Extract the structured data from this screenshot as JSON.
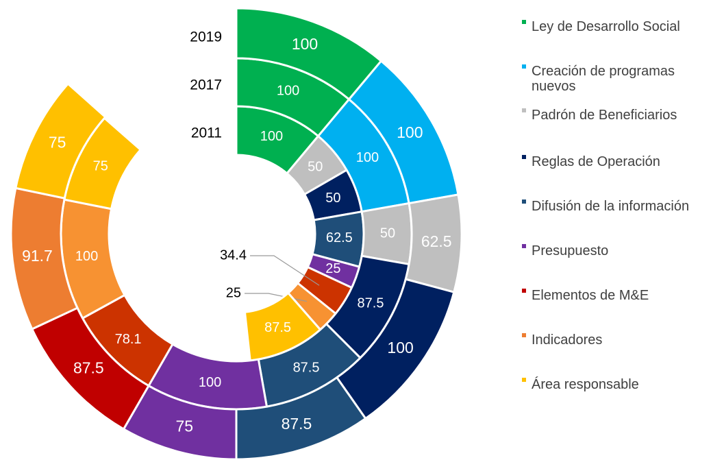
{
  "chart_data": {
    "type": "multi-ring-radial",
    "categories": [
      "Ley de Desarrollo Social",
      "Creación de programas nuevos",
      "Padrón de Beneficiarios",
      "Reglas de Operación",
      "Difusión de la información",
      "Presupuesto",
      "Elementos de M&E",
      "Indicadores",
      "Área responsable"
    ],
    "colors": [
      "#00b050",
      "#00b0f0",
      "#bfbfbf",
      "#002060",
      "#1f4e79",
      "#7030a0",
      "#c00000",
      "#ed7d31",
      "#ffc000"
    ],
    "series": [
      {
        "name": "2011",
        "values": [
          100,
          null,
          50,
          50,
          62.5,
          25,
          34.4,
          25,
          87.5
        ],
        "colors": [
          "#00b050",
          "#00b0f0",
          "#bfbfbf",
          "#002060",
          "#1f4e79",
          "#7030a0",
          "#cc3300",
          "#f79232",
          "#ffc000"
        ]
      },
      {
        "name": "2017",
        "values": [
          100,
          100,
          50,
          87.5,
          87.5,
          100,
          78.1,
          100,
          75
        ],
        "colors": [
          "#00b050",
          "#00b0f0",
          "#bfbfbf",
          "#002060",
          "#1f4e79",
          "#7030a0",
          "#cc3300",
          "#f79232",
          "#ffc000"
        ]
      },
      {
        "name": "2019",
        "values": [
          100,
          100,
          62.5,
          100,
          87.5,
          75,
          87.5,
          91.7,
          75
        ],
        "colors": [
          "#00b050",
          "#00b0f0",
          "#bfbfbf",
          "#002060",
          "#1f4e79",
          "#7030a0",
          "#c00000",
          "#ed7d31",
          "#ffc000"
        ]
      }
    ],
    "max_per_category": 100
  }
}
